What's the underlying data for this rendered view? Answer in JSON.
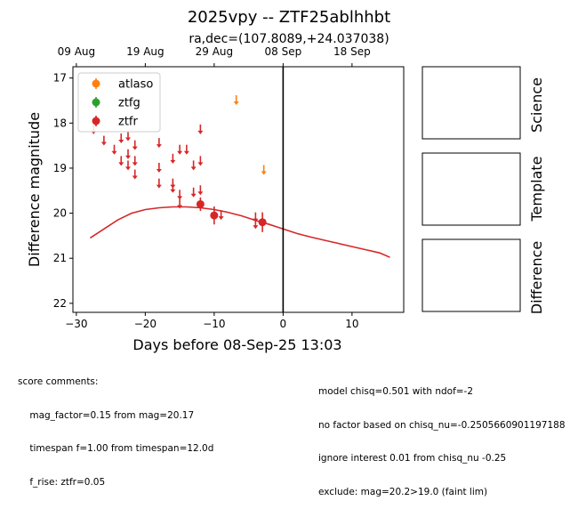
{
  "chart_data": {
    "type": "scatter",
    "title": "2025vpy -- ZTF25ablhhbt",
    "subtitle": "ra,dec=(107.8089,+24.037038)",
    "xlabel": "Days before 08-Sep-25 13:03",
    "ylabel": "Difference magnitude",
    "xlim": [
      -30.5,
      17.5
    ],
    "ylim": [
      22.2,
      16.75
    ],
    "y_inverted": true,
    "x_ticks": [
      -30,
      -20,
      -10,
      0,
      10
    ],
    "y_ticks": [
      17,
      18,
      19,
      20,
      21,
      22
    ],
    "top_axis_ticks": [
      {
        "label": "09 Aug",
        "x": -30
      },
      {
        "label": "19 Aug",
        "x": -20
      },
      {
        "label": "29 Aug",
        "x": -10
      },
      {
        "label": "08 Sep",
        "x": 0
      },
      {
        "label": "18 Sep",
        "x": 10
      }
    ],
    "vline_x": 0,
    "legend": {
      "location": "top-left",
      "entries": [
        {
          "name": "atlaso",
          "color": "#ff7f0e"
        },
        {
          "name": "ztfg",
          "color": "#2ca02c"
        },
        {
          "name": "ztfr",
          "color": "#d62728"
        }
      ]
    },
    "series": [
      {
        "name": "ztfr",
        "color": "#d62728",
        "detections": [
          {
            "x": -12.0,
            "y": 19.8,
            "err": 0.15
          },
          {
            "x": -10.0,
            "y": 20.05,
            "err": 0.2
          },
          {
            "x": -3.0,
            "y": 20.2,
            "err": 0.22
          }
        ],
        "upper_limits": [
          {
            "x": -27.5,
            "y": 18.15
          },
          {
            "x": -26.0,
            "y": 18.4
          },
          {
            "x": -24.5,
            "y": 18.6
          },
          {
            "x": -23.5,
            "y": 18.35
          },
          {
            "x": -23.5,
            "y": 18.85
          },
          {
            "x": -22.5,
            "y": 18.3
          },
          {
            "x": -22.5,
            "y": 18.7
          },
          {
            "x": -22.5,
            "y": 18.95
          },
          {
            "x": -21.5,
            "y": 18.5
          },
          {
            "x": -21.5,
            "y": 18.85
          },
          {
            "x": -21.5,
            "y": 19.15
          },
          {
            "x": -18.0,
            "y": 18.45
          },
          {
            "x": -18.0,
            "y": 19.0
          },
          {
            "x": -18.0,
            "y": 19.35
          },
          {
            "x": -16.0,
            "y": 18.8
          },
          {
            "x": -16.0,
            "y": 19.35
          },
          {
            "x": -16.0,
            "y": 19.45
          },
          {
            "x": -15.0,
            "y": 18.6
          },
          {
            "x": -15.0,
            "y": 19.6
          },
          {
            "x": -15.0,
            "y": 19.8
          },
          {
            "x": -14.0,
            "y": 18.6
          },
          {
            "x": -13.0,
            "y": 18.95
          },
          {
            "x": -13.0,
            "y": 19.55
          },
          {
            "x": -12.0,
            "y": 18.15
          },
          {
            "x": -12.0,
            "y": 18.85
          },
          {
            "x": -12.0,
            "y": 19.5
          },
          {
            "x": -9.0,
            "y": 20.05
          },
          {
            "x": -4.0,
            "y": 20.1
          },
          {
            "x": -4.0,
            "y": 20.25
          }
        ]
      },
      {
        "name": "atlaso",
        "color": "#ff7f0e",
        "detections": [],
        "upper_limits": [
          {
            "x": -6.8,
            "y": 17.5
          },
          {
            "x": -2.8,
            "y": 19.05
          }
        ]
      },
      {
        "name": "ztfg",
        "color": "#2ca02c",
        "detections": [],
        "upper_limits": []
      }
    ],
    "model_curve": {
      "color": "#d62728",
      "x": [
        -28,
        -26,
        -24,
        -22,
        -20,
        -18,
        -16,
        -14,
        -12,
        -10,
        -8,
        -6,
        -4,
        -2,
        0,
        2,
        4,
        6,
        8,
        10,
        12,
        14,
        15.5
      ],
      "y": [
        20.55,
        20.35,
        20.15,
        20.0,
        19.92,
        19.88,
        19.86,
        19.86,
        19.88,
        19.92,
        19.98,
        20.06,
        20.16,
        20.25,
        20.35,
        20.45,
        20.53,
        20.6,
        20.67,
        20.74,
        20.81,
        20.88,
        20.98
      ]
    }
  },
  "panels": {
    "science_label": "Science",
    "template_label": "Template",
    "difference_label": "Difference"
  },
  "comments": {
    "left": [
      "score comments:",
      "    mag_factor=0.15 from mag=20.17",
      "    timespan f=1.00 from timespan=12.0d",
      "    f_rise: ztfr=0.05"
    ],
    "right": [
      "model chisq=0.501 with ndof=-2",
      "no factor based on chisq_nu=-0.2505660901197188",
      "ignore interest 0.01 from chisq_nu -0.25",
      "exclude: mag=20.2>19.0 (faint lim)"
    ]
  }
}
